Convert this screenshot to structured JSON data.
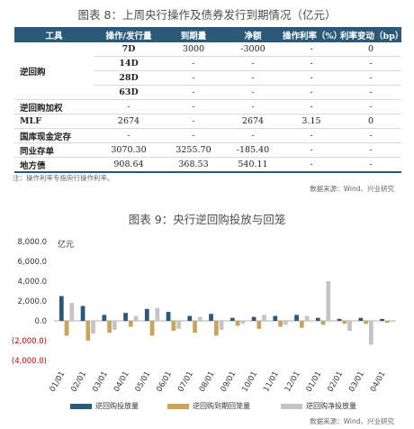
{
  "top": {
    "title": "图表 8：上周央行操作及债券发行到期情况（亿元）",
    "headers": [
      "工具",
      "操作/发行量",
      "到期量",
      "净额",
      "操作利率（%）",
      "利率变动（bp）"
    ],
    "group_label": "逆回购",
    "rows": [
      {
        "term": "7D",
        "op": "-",
        "mat": "3000",
        "net": "-3000",
        "rate": "-",
        "chg": "0"
      },
      {
        "term": "14D",
        "op": "-",
        "mat": "-",
        "net": "-",
        "rate": "-",
        "chg": "-"
      },
      {
        "term": "28D",
        "op": "-",
        "mat": "-",
        "net": "-",
        "rate": "-",
        "chg": "-"
      },
      {
        "term": "63D",
        "op": "-",
        "mat": "-",
        "net": "-",
        "rate": "-",
        "chg": "-"
      },
      {
        "label": "逆回购加权",
        "op": "-",
        "mat": "-",
        "net": "-",
        "rate": "-",
        "chg": "-"
      },
      {
        "label": "MLF",
        "op": "2674",
        "mat": "-",
        "net": "2674",
        "rate": "3.15",
        "chg": "0"
      },
      {
        "label": "国库现金定存",
        "op": "-",
        "mat": "-",
        "net": "-",
        "rate": "-",
        "chg": "-"
      },
      {
        "label": "同业存单",
        "op": "3070.30",
        "mat": "3255.70",
        "net": "-185.40",
        "rate": "-",
        "chg": "-"
      },
      {
        "label": "地方债",
        "op": "908.64",
        "mat": "368.53",
        "net": "540.11",
        "rate": "-",
        "chg": "-"
      }
    ],
    "note": "注：操作利率专指央行操作利率。",
    "source": "数据来源：Wind、兴业研究"
  },
  "bottom": {
    "title": "图表 9：央行逆回购投放与回笼",
    "source": "数据来源：Wind、兴业研究",
    "legend": [
      {
        "label": "逆回购投放量",
        "color": "#2b5a78"
      },
      {
        "label": "逆回购到期回笼量",
        "color": "#c8a45c"
      },
      {
        "label": "逆回购净投放量",
        "color": "#c4c4c4"
      }
    ]
  },
  "chart_data": {
    "type": "bar",
    "ylabel": "亿元",
    "ylim": [
      -4000,
      8000
    ],
    "yticks": [
      "8,000.0",
      "6,000.0",
      "4,000.0",
      "2,000.0",
      "0.0",
      "(2,000.0)",
      "(4,000.0)"
    ],
    "ytick_values": [
      8000,
      6000,
      4000,
      2000,
      0,
      -2000,
      -4000
    ],
    "categories": [
      "01/01",
      "02/01",
      "03/01",
      "04/01",
      "05/01",
      "06/01",
      "07/01",
      "08/01",
      "09/01",
      "10/01",
      "11/01",
      "12/01",
      "01/01",
      "02/01",
      "03/01",
      "04/01"
    ],
    "series": [
      {
        "name": "逆回购投放量",
        "color": "#2b5a78",
        "values": [
          2500,
          1500,
          600,
          800,
          1200,
          900,
          500,
          700,
          300,
          400,
          500,
          600,
          300,
          200,
          300,
          200
        ]
      },
      {
        "name": "逆回购到期回笼量",
        "color": "#c8a45c",
        "values": [
          -1500,
          -2000,
          -1200,
          -600,
          -1500,
          -1000,
          -1200,
          -1500,
          -500,
          -800,
          -600,
          -700,
          -400,
          -300,
          -300,
          -200
        ]
      },
      {
        "name": "逆回购净投放量",
        "color": "#c4c4c4",
        "values": [
          1800,
          -1300,
          -900,
          500,
          1300,
          -800,
          400,
          -900,
          -300,
          600,
          -400,
          500,
          4000,
          -1000,
          -2400,
          -100
        ]
      }
    ]
  }
}
